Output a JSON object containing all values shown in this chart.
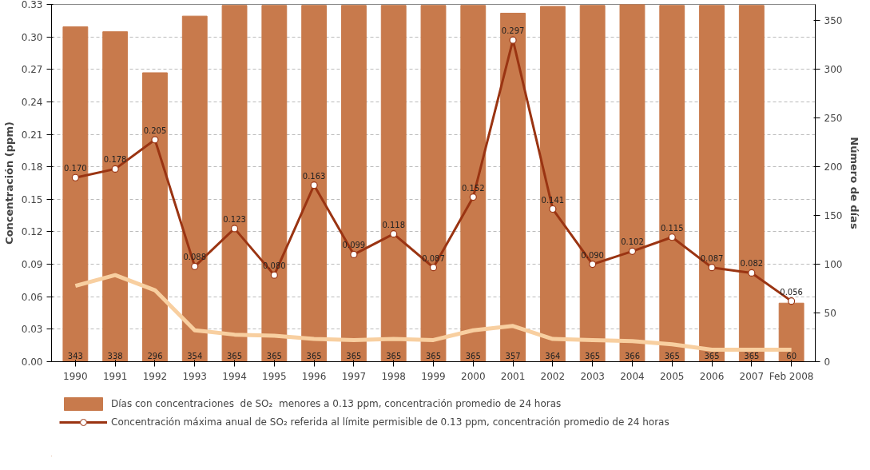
{
  "chart_data": {
    "type": "bar",
    "ylabel": "Concentración (ppm)",
    "y2label": "Número de días",
    "categories": [
      "1990",
      "1991",
      "1992",
      "1993",
      "1994",
      "1995",
      "1996",
      "1997",
      "1998",
      "1999",
      "2000",
      "2001",
      "2002",
      "2003",
      "2004",
      "2005",
      "2006",
      "2007",
      "Feb 2008"
    ],
    "series": [
      {
        "name": "Días con concentraciones  de SO₂  menores a 0.13 ppm, concentración promedio de 24 horas",
        "axis": "y2",
        "color": "#c87a4c",
        "values": [
          343,
          338,
          296,
          354,
          365,
          365,
          365,
          365,
          365,
          365,
          365,
          357,
          364,
          365,
          366,
          365,
          365,
          365,
          60
        ],
        "value_labels": [
          "343",
          "338",
          "296",
          "354",
          "365",
          "365",
          "365",
          "365",
          "365",
          "365",
          "365",
          "357",
          "364",
          "365",
          "366",
          "365",
          "365",
          "365",
          "60"
        ]
      },
      {
        "name": "Concentración máxima anual de SO₂ referida al límite permisible de 0.13 ppm, concentración promedio de 24 horas",
        "type": "line",
        "marker": "circle",
        "color": "#9a3412",
        "values": [
          0.17,
          0.178,
          0.205,
          0.088,
          0.123,
          0.08,
          0.163,
          0.099,
          0.118,
          0.087,
          0.152,
          0.297,
          0.141,
          0.09,
          0.102,
          0.115,
          0.087,
          0.082,
          0.056
        ],
        "value_labels": [
          "0.170",
          "0.178",
          "0.205",
          "0.088",
          "0.123",
          "0.080",
          "0.163",
          "0.099",
          "0.118",
          "0.087",
          "0.152",
          "0.297",
          "0.141",
          "0.090",
          "0.102",
          "0.115",
          "0.087",
          "0.082",
          "0.056"
        ]
      },
      {
        "type": "line",
        "color": "#f8cfa0",
        "values": [
          0.07,
          0.08,
          0.066,
          0.029,
          0.025,
          0.024,
          0.021,
          0.02,
          0.021,
          0.02,
          0.029,
          0.033,
          0.021,
          0.02,
          0.019,
          0.016,
          0.011,
          0.011,
          0.011
        ]
      }
    ],
    "ylim": [
      0,
      0.33
    ],
    "yticks": [
      {
        "value": 0,
        "label": "0.00"
      },
      {
        "value": 0.03,
        "label": "0.03"
      },
      {
        "value": 0.06,
        "label": "0.06"
      },
      {
        "value": 0.09,
        "label": "0.09"
      },
      {
        "value": 0.12,
        "label": "0.12"
      },
      {
        "value": 0.15,
        "label": "0.15"
      },
      {
        "value": 0.18,
        "label": "0.18"
      },
      {
        "value": 0.21,
        "label": "0.21"
      },
      {
        "value": 0.24,
        "label": "0.24"
      },
      {
        "value": 0.27,
        "label": "0.27"
      },
      {
        "value": 0.3,
        "label": "0.30"
      },
      {
        "value": 0.33,
        "label": "0.33"
      }
    ],
    "y2lim": [
      0,
      366
    ],
    "y2ticks": [
      0,
      50,
      100,
      150,
      200,
      250,
      300,
      350
    ],
    "grid": "y",
    "legend": "bottom"
  }
}
